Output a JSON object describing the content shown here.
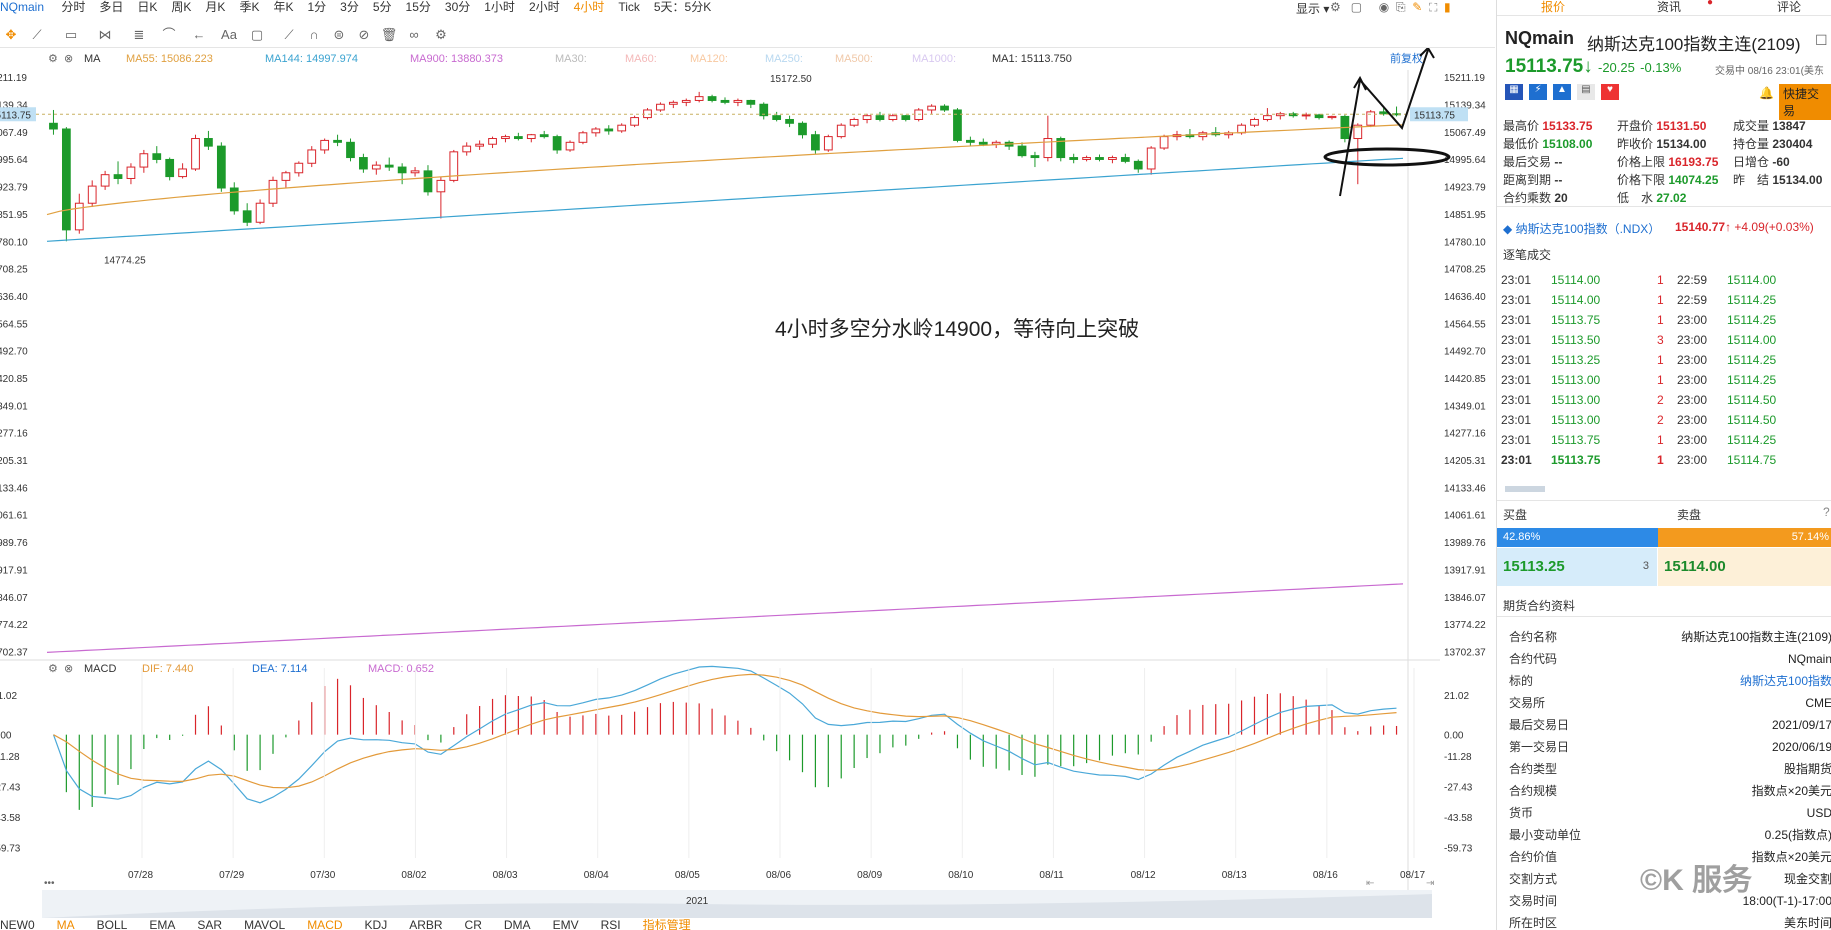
{
  "topbar": {
    "symbol": "NQmain",
    "periods": [
      "分时",
      "多日",
      "日K",
      "周K",
      "月K",
      "季K",
      "年K",
      "1分",
      "3分",
      "5分",
      "15分",
      "30分",
      "1小时",
      "2小时",
      "4小时",
      "Tick",
      "5天：5分K"
    ],
    "active_period": "4小时",
    "display_label": "显示"
  },
  "indicator_row": {
    "ma_label": "MA",
    "ma55": "MA55: 15086.223",
    "ma144": "MA144: 14997.974",
    "ma900": "MA900: 13880.373",
    "ma30": "MA30:",
    "ma60": "MA60:",
    "ma120": "MA120:",
    "ma250": "MA250:",
    "ma500": "MA500:",
    "ma1000": "MA1000:",
    "ma1": "MA1: 15113.750",
    "restore": "前复权"
  },
  "macd_row": {
    "label": "MACD",
    "dif": "DIF: 7.440",
    "dea": "DEA: 7.114",
    "macd": "MACD: 0.652"
  },
  "annotation_text": "4小时多空分水岭14900，等待向上突破",
  "bottom_tabs": [
    "NEW0",
    "MA",
    "BOLL",
    "EMA",
    "SAR",
    "MAVOL",
    "MACD",
    "KDJ",
    "ARBR",
    "CR",
    "DMA",
    "EMV",
    "RSI",
    "指标管理"
  ],
  "year_label": "2021",
  "watermark": "©K 服务",
  "colors": {
    "up": "#d9252b",
    "down": "#1c9a2b",
    "ma55": "#e0a040",
    "ma144": "#3ba3d0",
    "ma900": "#c86ad0",
    "dif": "#4aa8d8",
    "dea": "#e39a3a"
  },
  "chart_data": [
    {
      "type": "candlestick",
      "title": "",
      "x_tick_labels": [
        "07/28",
        "07/29",
        "07/30",
        "08/02",
        "08/03",
        "08/04",
        "08/05",
        "08/06",
        "08/09",
        "08/10",
        "08/11",
        "08/12",
        "08/13",
        "08/16",
        "08/17"
      ],
      "y_tick_labels": [
        "15211.19",
        "15139.34",
        "15067.49",
        "14995.64",
        "14923.79",
        "14851.95",
        "14780.10",
        "14708.25",
        "14636.40",
        "14564.55",
        "14492.70",
        "14420.85",
        "14349.01",
        "14277.16",
        "14205.31",
        "14133.46",
        "14061.61",
        "13989.76",
        "13917.91",
        "13846.07",
        "13774.22",
        "13702.37"
      ],
      "ylim": [
        13680,
        15230
      ],
      "last_price_tag": "15113.75",
      "high_label": "15172.50",
      "low_label": "14774.25",
      "ohlc": [
        [
          15090,
          15125,
          15060,
          15075
        ],
        [
          15075,
          15080,
          14780,
          14810
        ],
        [
          14810,
          14905,
          14800,
          14880
        ],
        [
          14880,
          14940,
          14870,
          14925
        ],
        [
          14925,
          14965,
          14915,
          14955
        ],
        [
          14955,
          14990,
          14930,
          14945
        ],
        [
          14945,
          14985,
          14930,
          14975
        ],
        [
          14975,
          15020,
          14960,
          15010
        ],
        [
          15010,
          15030,
          14985,
          14995
        ],
        [
          14995,
          15000,
          14940,
          14950
        ],
        [
          14950,
          14985,
          14945,
          14970
        ],
        [
          14970,
          15060,
          14965,
          15050
        ],
        [
          15050,
          15070,
          15020,
          15030
        ],
        [
          15030,
          15040,
          14910,
          14920
        ],
        [
          14920,
          14935,
          14850,
          14860
        ],
        [
          14860,
          14880,
          14820,
          14830
        ],
        [
          14830,
          14890,
          14825,
          14880
        ],
        [
          14880,
          14950,
          14870,
          14940
        ],
        [
          14940,
          14965,
          14920,
          14960
        ],
        [
          14960,
          14990,
          14950,
          14985
        ],
        [
          14985,
          15030,
          14975,
          15020
        ],
        [
          15020,
          15050,
          15010,
          15045
        ],
        [
          15045,
          15060,
          15030,
          15040
        ],
        [
          15040,
          15050,
          14990,
          15000
        ],
        [
          15000,
          15010,
          14960,
          14970
        ],
        [
          14970,
          14990,
          14955,
          14980
        ],
        [
          14980,
          15000,
          14965,
          14975
        ],
        [
          14975,
          14985,
          14930,
          14960
        ],
        [
          14960,
          14975,
          14950,
          14965
        ],
        [
          14965,
          14980,
          14900,
          14910
        ],
        [
          14910,
          14950,
          14840,
          14940
        ],
        [
          14940,
          15020,
          14935,
          15015
        ],
        [
          15015,
          15040,
          15005,
          15030
        ],
        [
          15030,
          15045,
          15020,
          15035
        ],
        [
          15035,
          15055,
          15025,
          15050
        ],
        [
          15050,
          15060,
          15040,
          15055
        ],
        [
          15055,
          15065,
          15045,
          15050
        ],
        [
          15050,
          15062,
          15040,
          15060
        ],
        [
          15060,
          15070,
          15050,
          15055
        ],
        [
          15055,
          15060,
          15010,
          15020
        ],
        [
          15020,
          15045,
          15015,
          15040
        ],
        [
          15040,
          15070,
          15035,
          15065
        ],
        [
          15065,
          15080,
          15055,
          15075
        ],
        [
          15075,
          15085,
          15060,
          15070
        ],
        [
          15070,
          15090,
          15065,
          15085
        ],
        [
          15085,
          15110,
          15080,
          15105
        ],
        [
          15105,
          15130,
          15100,
          15125
        ],
        [
          15125,
          15145,
          15120,
          15140
        ],
        [
          15140,
          15150,
          15130,
          15145
        ],
        [
          15145,
          15155,
          15135,
          15150
        ],
        [
          15150,
          15172.5,
          15145,
          15160
        ],
        [
          15160,
          15165,
          15145,
          15150
        ],
        [
          15150,
          15158,
          15140,
          15145
        ],
        [
          15145,
          15155,
          15135,
          15150
        ],
        [
          15150,
          15152,
          15130,
          15140
        ],
        [
          15140,
          15145,
          15100,
          15110
        ],
        [
          15110,
          15120,
          15095,
          15100
        ],
        [
          15100,
          15110,
          15080,
          15090
        ],
        [
          15090,
          15095,
          15050,
          15060
        ],
        [
          15060,
          15070,
          15010,
          15020
        ],
        [
          15020,
          15060,
          15015,
          15055
        ],
        [
          15055,
          15090,
          15050,
          15085
        ],
        [
          15085,
          15105,
          15080,
          15100
        ],
        [
          15100,
          15115,
          15090,
          15110
        ],
        [
          15110,
          15120,
          15095,
          15100
        ],
        [
          15100,
          15115,
          15095,
          15110
        ],
        [
          15110,
          15112,
          15095,
          15100
        ],
        [
          15100,
          15130,
          15095,
          15125
        ],
        [
          15125,
          15140,
          15115,
          15135
        ],
        [
          15135,
          15140,
          15120,
          15125
        ],
        [
          15125,
          15130,
          15040,
          15045
        ],
        [
          15045,
          15055,
          15030,
          15040
        ],
        [
          15040,
          15050,
          15030,
          15035
        ],
        [
          15035,
          15045,
          15025,
          15040
        ],
        [
          15040,
          15045,
          15020,
          15030
        ],
        [
          15030,
          15040,
          15000,
          15005
        ],
        [
          15005,
          15015,
          14975,
          15000
        ],
        [
          15000,
          15110,
          14990,
          15050
        ],
        [
          15050,
          15055,
          14990,
          15000
        ],
        [
          15000,
          15010,
          14985,
          14995
        ],
        [
          14995,
          15005,
          14990,
          15000
        ],
        [
          15000,
          15008,
          14990,
          14995
        ],
        [
          14995,
          15005,
          14985,
          15000
        ],
        [
          15000,
          15010,
          14985,
          14990
        ],
        [
          14990,
          14995,
          14960,
          14970
        ],
        [
          14970,
          15030,
          14955,
          15025
        ],
        [
          15025,
          15060,
          15020,
          15055
        ],
        [
          15055,
          15070,
          15045,
          15060
        ],
        [
          15060,
          15075,
          15050,
          15055
        ],
        [
          15055,
          15070,
          15045,
          15065
        ],
        [
          15065,
          15080,
          15055,
          15060
        ],
        [
          15060,
          15070,
          15050,
          15065
        ],
        [
          15065,
          15090,
          15060,
          15085
        ],
        [
          15085,
          15105,
          15080,
          15100
        ],
        [
          15100,
          15130,
          15095,
          15110
        ],
        [
          15110,
          15120,
          15100,
          15115
        ],
        [
          15115,
          15120,
          15105,
          15110
        ],
        [
          15110,
          15118,
          15100,
          15112
        ],
        [
          15112,
          15115,
          15100,
          15105
        ],
        [
          15105,
          15110,
          15100,
          15108
        ],
        [
          15108,
          15112,
          15040,
          15050
        ],
        [
          15050,
          15090,
          14930,
          15085
        ],
        [
          15085,
          15125,
          15080,
          15120
        ],
        [
          15120,
          15130,
          15110,
          15115
        ],
        [
          15115,
          15134,
          15108,
          15113.75
        ]
      ],
      "series": [
        {
          "name": "MA55",
          "values_start": 14850,
          "values_end": 15086
        },
        {
          "name": "MA144",
          "values_start": 14780,
          "values_end": 14998
        },
        {
          "name": "MA900",
          "values_start": 13700,
          "values_end": 13880
        }
      ]
    },
    {
      "type": "macd",
      "title": "",
      "y_tick_labels": [
        "21.02",
        "0.00",
        "-11.28",
        "-27.43",
        "-43.58",
        "-59.73"
      ],
      "ylim": [
        -60,
        30
      ]
    }
  ],
  "quote": {
    "symbol": "NQmain",
    "name": "纳斯达克100指数主连(2109)",
    "price": "15113.75",
    "arrow": "↓",
    "change": "-20.25",
    "pct": "-0.13%",
    "time": "交易中 08/16 23:01(美东",
    "fast_trade": "快捷交易",
    "rows": [
      [
        [
          "最高价",
          "15133.75",
          "r"
        ],
        [
          "开盘价",
          "15131.50",
          "r"
        ],
        [
          "成交量",
          "13847",
          ""
        ]
      ],
      [
        [
          "最低价",
          "15108.00",
          "g"
        ],
        [
          "昨收价",
          "15134.00",
          ""
        ],
        [
          "持仓量",
          "230404",
          ""
        ]
      ],
      [
        [
          "最后交易",
          "--",
          ""
        ],
        [
          "价格上限",
          "16193.75",
          "r"
        ],
        [
          "日增仓",
          "-60",
          ""
        ]
      ],
      [
        [
          "距离到期",
          "--",
          ""
        ],
        [
          "价格下限",
          "14074.25",
          "g"
        ],
        [
          "昨　结",
          "15134.00",
          ""
        ]
      ],
      [
        [
          "合约乘数",
          "20",
          ""
        ],
        [
          "低　水",
          "27.02",
          "g"
        ],
        [
          "",
          "",
          ""
        ]
      ]
    ]
  },
  "index_row": {
    "name": "纳斯达克100指数（.NDX）",
    "price": "15140.77",
    "arrow": "↑",
    "change": "+4.09(+0.03%)"
  },
  "trades_title": "逐笔成交",
  "trades": [
    [
      "23:01",
      "15114.00",
      "1",
      "22:59",
      "15114.00"
    ],
    [
      "23:01",
      "15114.00",
      "1",
      "22:59",
      "15114.25"
    ],
    [
      "23:01",
      "15113.75",
      "1",
      "23:00",
      "15114.25"
    ],
    [
      "23:01",
      "15113.50",
      "3",
      "23:00",
      "15114.00"
    ],
    [
      "23:01",
      "15113.25",
      "1",
      "23:00",
      "15114.25"
    ],
    [
      "23:01",
      "15113.00",
      "1",
      "23:00",
      "15114.25"
    ],
    [
      "23:01",
      "15113.00",
      "2",
      "23:00",
      "15114.50"
    ],
    [
      "23:01",
      "15113.00",
      "2",
      "23:00",
      "15114.50"
    ],
    [
      "23:01",
      "15113.75",
      "1",
      "23:00",
      "15114.25"
    ],
    [
      "23:01",
      "15113.75",
      "1",
      "23:00",
      "15114.75"
    ]
  ],
  "orderbook": {
    "buy_label": "买盘",
    "sell_label": "卖盘",
    "buy_pct": "42.86%",
    "buy_ratio": 0.4286,
    "sell_pct": "57.14%",
    "bid": "15113.25",
    "bid_qty": "3",
    "ask": "15114.00"
  },
  "contract_title": "期货合约资料",
  "contract": [
    [
      "合约名称",
      "纳斯达克100指数主连(2109)"
    ],
    [
      "合约代码",
      "NQmain"
    ],
    [
      "标的",
      "纳斯达克100指数"
    ],
    [
      "交易所",
      "CME"
    ],
    [
      "最后交易日",
      "2021/09/17"
    ],
    [
      "第一交易日",
      "2020/06/19"
    ],
    [
      "合约类型",
      "股指期货"
    ],
    [
      "合约规模",
      "指数点×20美元"
    ],
    [
      "货币",
      "USD"
    ],
    [
      "最小变动单位",
      "0.25(指数点)"
    ],
    [
      "合约价值",
      "指数点×20美元"
    ],
    [
      "交割方式",
      "现金交割"
    ],
    [
      "交易时间",
      "18:00(T-1)-17:00"
    ],
    [
      "所在时区",
      "美东时间"
    ]
  ],
  "right_tabs": [
    "报价",
    "资讯",
    "评论"
  ]
}
